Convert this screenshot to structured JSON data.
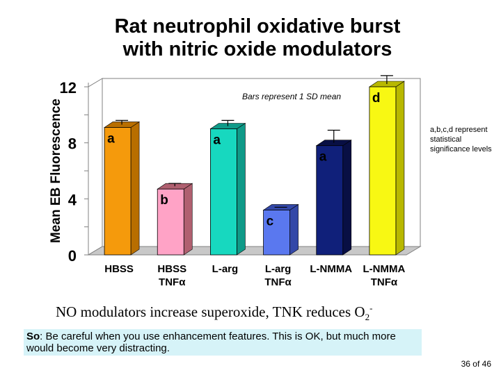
{
  "title_line1": "Rat neutrophil oxidative burst",
  "title_line2": "with nitric oxide modulators",
  "side_note": "a,b,c,d represent statistical significance levels",
  "caption": {
    "text": "NO modulators increase superoxide, TNK reduces O",
    "sub": "2",
    "sup": "-"
  },
  "tip": {
    "label": "So",
    "text": ": Be careful when you use enhancement features. This is OK, but much more would become very distracting."
  },
  "slide_number": "36 of 46",
  "chart_data": {
    "type": "bar",
    "ylabel": "Mean EB Fluorescence",
    "annotation": "Bars represent 1 SD mean",
    "ylim": [
      0,
      12
    ],
    "yticks": [
      "0",
      "4",
      "8",
      "12"
    ],
    "grid": false,
    "categories": [
      [
        "HBSS"
      ],
      [
        "HBSS",
        "TNFα"
      ],
      [
        "L-arg"
      ],
      [
        "L-arg",
        "TNFα"
      ],
      [
        "L-NMMA"
      ],
      [
        "L-NMMA",
        "TNFα"
      ]
    ],
    "values": [
      9.1,
      4.7,
      9.0,
      3.2,
      7.8,
      12.0
    ],
    "errors": [
      0.5,
      0.4,
      0.6,
      0.2,
      1.1,
      0.8
    ],
    "letters": [
      "a",
      "b",
      "a",
      "c",
      "a",
      "d"
    ],
    "colors": [
      "#f59a0c",
      "#ffa3c6",
      "#17d8bf",
      "#5a78ef",
      "#10207a",
      "#f8f813"
    ],
    "side_colors": [
      "#b86e00",
      "#b06070",
      "#0f9a88",
      "#3348a8",
      "#080f44",
      "#b8b800"
    ]
  }
}
